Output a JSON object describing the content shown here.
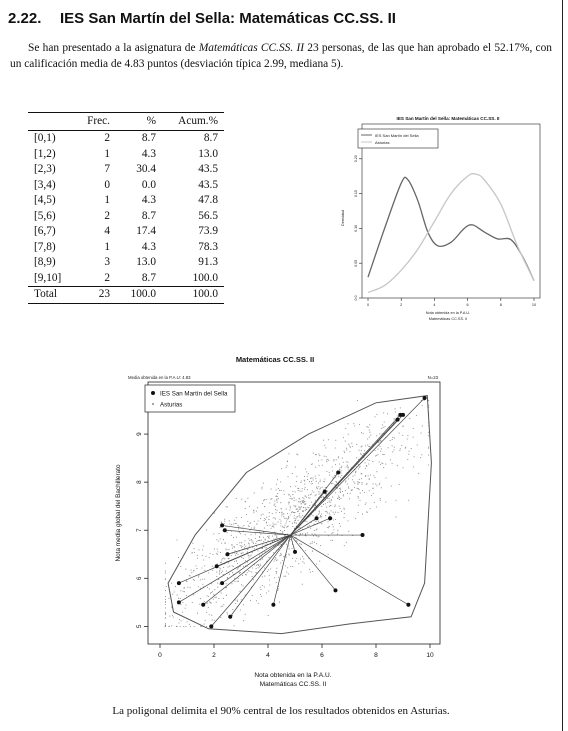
{
  "section": {
    "number": "2.22.",
    "title": "IES San Martín del Sella: Matemáticas CC.SS. II"
  },
  "intro": {
    "part1": "Se han presentado a la asignatura de ",
    "subject": "Matemáticas CC.SS. II",
    "part2": " 23 personas, de las que han aprobado el 52.17%, con un calificación media de 4.83 puntos (desviación típica 2.99, mediana 5)."
  },
  "table": {
    "headers": [
      "",
      "Frec.",
      "%",
      "Acum.%"
    ],
    "rows": [
      [
        "[0,1)",
        "2",
        "8.7",
        "8.7"
      ],
      [
        "[1,2)",
        "1",
        "4.3",
        "13.0"
      ],
      [
        "[2,3)",
        "7",
        "30.4",
        "43.5"
      ],
      [
        "[3,4)",
        "0",
        "0.0",
        "43.5"
      ],
      [
        "[4,5)",
        "1",
        "4.3",
        "47.8"
      ],
      [
        "[5,6)",
        "2",
        "8.7",
        "56.5"
      ],
      [
        "[6,7)",
        "4",
        "17.4",
        "73.9"
      ],
      [
        "[7,8)",
        "1",
        "4.3",
        "78.3"
      ],
      [
        "[8,9)",
        "3",
        "13.0",
        "91.3"
      ],
      [
        "[9,10]",
        "2",
        "8.7",
        "100.0"
      ]
    ],
    "total": [
      "Total",
      "23",
      "100.0",
      "100.0"
    ]
  },
  "chart_data": [
    {
      "type": "line",
      "title": "IES San Martín del Sella: Matemáticas CC.SS. II",
      "xlabel": "Nota obtenida en la P.A.U.",
      "xlabel2": "Matemáticas CC.SS. II",
      "ylabel": "Densidad",
      "xlim": [
        0,
        10
      ],
      "ylim": [
        0,
        0.25
      ],
      "xticks": [
        "0",
        "2",
        "4",
        "6",
        "8",
        "10"
      ],
      "yticks": [
        "0.0",
        "0.05",
        "0.10",
        "0.15",
        "0.20"
      ],
      "legend": [
        "IES San Martín del Sella",
        "Asturias"
      ],
      "legend_position": "top-left",
      "series": [
        {
          "name": "IES San Martín del Sella",
          "color": "#666666",
          "x": [
            0,
            1,
            2,
            2.4,
            3,
            3.6,
            4.2,
            5,
            5.8,
            6.3,
            7,
            7.8,
            8.6,
            9.3,
            10
          ],
          "y": [
            0.03,
            0.1,
            0.165,
            0.17,
            0.14,
            0.095,
            0.075,
            0.08,
            0.1,
            0.105,
            0.095,
            0.085,
            0.084,
            0.06,
            0.025
          ]
        },
        {
          "name": "Asturias",
          "color": "#c6c6c6",
          "x": [
            0,
            1,
            2,
            3,
            4,
            5,
            6,
            6.5,
            7,
            8,
            9,
            10
          ],
          "y": [
            0.008,
            0.018,
            0.04,
            0.07,
            0.11,
            0.15,
            0.175,
            0.178,
            0.17,
            0.135,
            0.075,
            0.025
          ]
        }
      ]
    },
    {
      "type": "scatter",
      "title": "Matemáticas CC.SS. II",
      "subtitle_left": "Media obtenida en la P.A.U: 4.83",
      "subtitle_right": "N=23",
      "xlabel": "Nota obtenida en la P.A.U.",
      "xlabel2": "Matemáticas CC.SS. II",
      "ylabel": "Nota media global del Bachillerato",
      "xlim": [
        0,
        10
      ],
      "ylim": [
        4.8,
        10
      ],
      "xticks": [
        "0",
        "2",
        "4",
        "6",
        "8",
        "10"
      ],
      "yticks": [
        "5",
        "6",
        "7",
        "8",
        "9"
      ],
      "legend": [
        "IES San Martín del Sella",
        "Asturias"
      ],
      "legend_position": "top-left",
      "center": [
        4.83,
        6.9
      ],
      "points": [
        [
          0.7,
          5.9
        ],
        [
          0.7,
          5.5
        ],
        [
          1.6,
          5.45
        ],
        [
          1.9,
          5.0
        ],
        [
          2.1,
          6.25
        ],
        [
          2.3,
          5.9
        ],
        [
          2.3,
          7.1
        ],
        [
          2.4,
          7.0
        ],
        [
          2.5,
          6.5
        ],
        [
          2.6,
          5.2
        ],
        [
          4.2,
          5.45
        ],
        [
          5.0,
          6.55
        ],
        [
          5.8,
          7.25
        ],
        [
          6.3,
          7.25
        ],
        [
          6.1,
          7.8
        ],
        [
          6.6,
          8.2
        ],
        [
          6.5,
          5.75
        ],
        [
          7.5,
          6.9
        ],
        [
          9.2,
          5.45
        ],
        [
          8.8,
          9.3
        ],
        [
          8.9,
          9.4
        ],
        [
          9.0,
          9.4
        ],
        [
          9.8,
          9.75
        ]
      ],
      "hull": [
        [
          0.3,
          5.9
        ],
        [
          0.5,
          5.3
        ],
        [
          1.8,
          4.95
        ],
        [
          4.5,
          4.85
        ],
        [
          7.0,
          5.05
        ],
        [
          9.3,
          5.2
        ],
        [
          9.8,
          5.9
        ],
        [
          10.05,
          8.4
        ],
        [
          9.9,
          9.8
        ],
        [
          8.0,
          9.65
        ],
        [
          5.5,
          9.0
        ],
        [
          3.2,
          8.2
        ],
        [
          1.3,
          6.9
        ]
      ]
    }
  ],
  "caption": "La poligonal delimita el 90% central de los resultados obtenidos en Asturias."
}
